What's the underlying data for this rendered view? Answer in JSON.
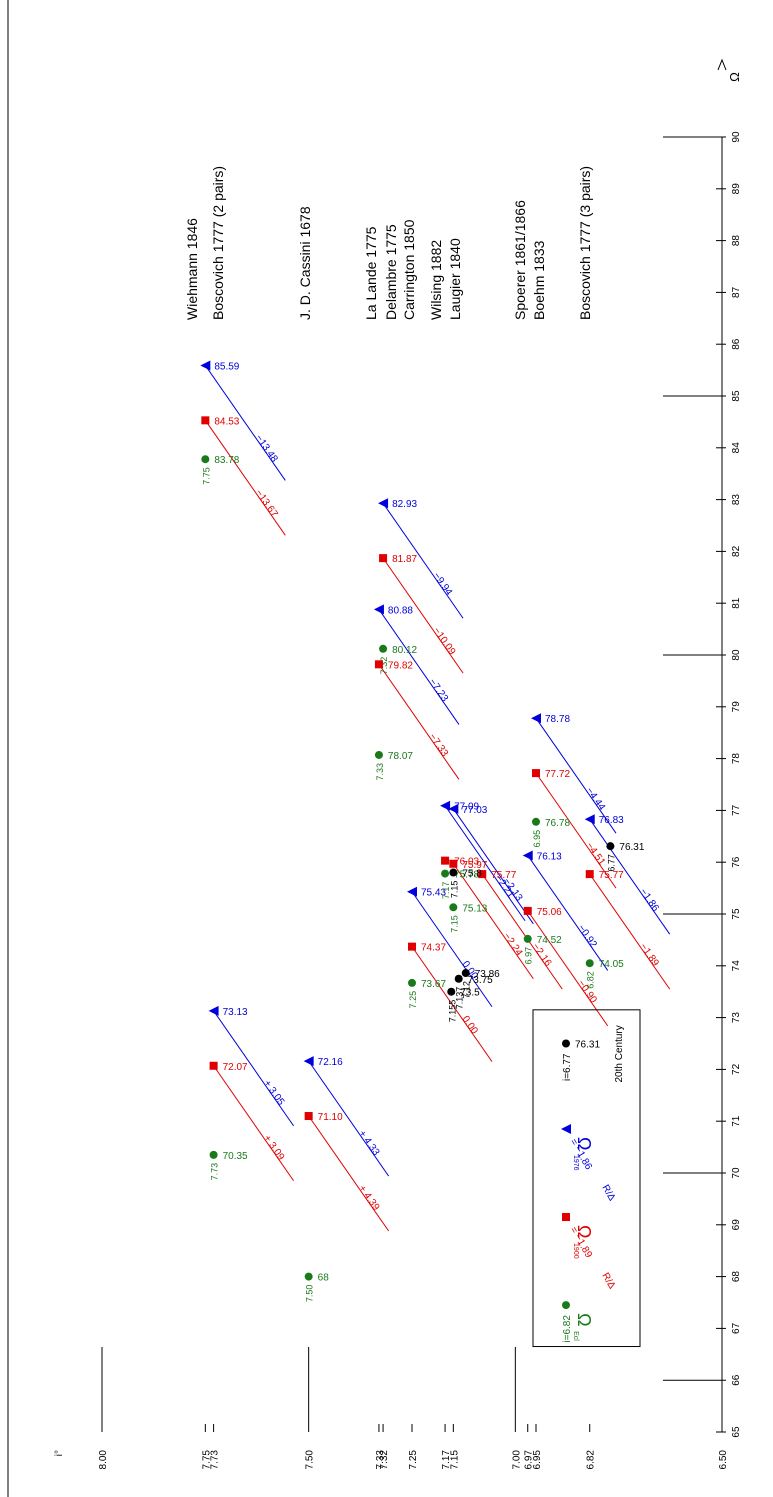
{
  "chart_data": {
    "type": "scatter",
    "x_axis": {
      "label": "Ω",
      "range": [
        65,
        90
      ],
      "tick_labels": [
        "65",
        "66",
        "67",
        "68",
        "69",
        "70",
        "71",
        "72",
        "73",
        "74",
        "75",
        "76",
        "77",
        "78",
        "79",
        "80",
        "81",
        "82",
        "83",
        "84",
        "85",
        "86",
        "87",
        "88",
        "89",
        "90"
      ],
      "long_ticks": [
        66,
        70,
        75,
        80,
        85,
        90
      ]
    },
    "y_axis": {
      "label": "i°",
      "range": [
        6.5,
        8.0
      ],
      "tick_labels": [
        "8.00",
        "7.75",
        "7.73",
        "7.50",
        "7.33",
        "7.32",
        "7.25",
        "7.17",
        "7.15",
        "7.00",
        "6.97",
        "6.95",
        "6.82",
        "6.50"
      ]
    },
    "groups": [
      {
        "names": [
          "Wiehmann 1846",
          "Boscovich 1777  (2 pairs)"
        ],
        "points": [
          {
            "series": "omega_ecl",
            "omega": "83.78",
            "x": 83.78,
            "y": 7.75,
            "incl": "7.75"
          },
          {
            "series": "omega_1900",
            "omega": "84.53",
            "x": 84.53,
            "y": 7.75,
            "delta": "−13.67"
          },
          {
            "series": "omega_1976",
            "omega": "85.59",
            "x": 85.59,
            "y": 7.75,
            "delta": "−13.48"
          },
          {
            "series": "omega_ecl",
            "omega": "70.35",
            "x": 70.35,
            "y": 7.73,
            "incl": "7.73"
          },
          {
            "series": "omega_1900",
            "omega": "72.07",
            "x": 72.07,
            "y": 7.73,
            "delta": "+ 3.09"
          },
          {
            "series": "omega_1976",
            "omega": "73.13",
            "x": 73.13,
            "y": 7.73,
            "delta": "+ 3.05"
          }
        ]
      },
      {
        "names": [
          "J. D. Cassini 1678"
        ],
        "points": [
          {
            "series": "omega_ecl",
            "omega": "68",
            "x": 68.0,
            "y": 7.5,
            "incl": "7.50"
          },
          {
            "series": "omega_1900",
            "omega": "71.10",
            "x": 71.1,
            "y": 7.5,
            "delta": "+ 4.39"
          },
          {
            "series": "omega_1976",
            "omega": "72.16",
            "x": 72.16,
            "y": 7.5,
            "delta": "+ 4.33"
          }
        ]
      },
      {
        "names": [
          "La Lande  1775",
          "Delambre  1775",
          "Carrington  1850"
        ],
        "points": [
          {
            "series": "omega_ecl",
            "omega": "80.12",
            "x": 80.12,
            "y": 7.32,
            "incl": "7.32"
          },
          {
            "series": "omega_1900",
            "omega": "79.82",
            "x": 79.82,
            "y": 7.33,
            "delta": "−7.33"
          },
          {
            "series": "omega_1976",
            "omega": "80.88",
            "x": 80.88,
            "y": 7.33,
            "delta": "−7.23"
          },
          {
            "series": "omega_1900",
            "omega": "81.87",
            "x": 81.87,
            "y": 7.32,
            "delta": "−10.09"
          },
          {
            "series": "omega_1976",
            "omega": "82.93",
            "x": 82.93,
            "y": 7.32,
            "delta": "−9.94"
          },
          {
            "series": "omega_ecl",
            "omega": "78.07",
            "x": 78.07,
            "y": 7.33,
            "incl": "7.33"
          },
          {
            "series": "omega_ecl",
            "omega": "73.67",
            "x": 73.67,
            "y": 7.25,
            "incl": "7.25"
          },
          {
            "series": "omega_1900",
            "omega": "74.37",
            "x": 74.37,
            "y": 7.25,
            "delta": "0.00"
          },
          {
            "series": "omega_1976",
            "omega": "75.43",
            "x": 75.43,
            "y": 7.25,
            "delta": "0.00"
          }
        ]
      },
      {
        "names": [
          "Wilsing  1882",
          "Laugier 1840"
        ],
        "points": [
          {
            "series": "omega_ecl",
            "omega": "75.78",
            "x": 75.78,
            "y": 7.17,
            "incl": "7.17"
          },
          {
            "series": "omega_1900",
            "omega": "76.03",
            "x": 76.03,
            "y": 7.17
          },
          {
            "series": "omega_1976",
            "omega": "77.09",
            "x": 77.09,
            "y": 7.17,
            "delta": "−2.21"
          },
          {
            "series": "omega_1900",
            "omega": "75.97",
            "x": 75.97,
            "y": 7.15,
            "delta": "−2.24"
          },
          {
            "series": "omega_1976",
            "omega": "77.03",
            "x": 77.03,
            "y": 7.15,
            "delta": "−2.13"
          },
          {
            "series": "omega_ecl",
            "omega": "75.13",
            "x": 75.13,
            "y": 7.15,
            "incl": "7.15"
          },
          {
            "series": "omega_1900",
            "omega": "75.77",
            "x": 75.77,
            "y": 7.08,
            "delta": "−2.16"
          },
          {
            "series": "twentieth",
            "omega": "75.8",
            "x": 75.8,
            "y": 7.15,
            "incl": "7.15"
          },
          {
            "series": "twentieth",
            "omega": "73.75",
            "x": 73.75,
            "y": 7.137,
            "incl": "7.137"
          },
          {
            "series": "twentieth",
            "omega": "73.86",
            "x": 73.86,
            "y": 7.12,
            "incl": "7.12"
          },
          {
            "series": "twentieth",
            "omega": "73.5",
            "x": 73.5,
            "y": 7.155,
            "incl": "7.155"
          }
        ]
      },
      {
        "names": [
          "Spoerer 1861/1866",
          "Boehm  1833"
        ],
        "points": [
          {
            "series": "omega_ecl",
            "omega": "74.52",
            "x": 74.52,
            "y": 6.97,
            "incl": "6.97"
          },
          {
            "series": "omega_1900",
            "omega": "75.06",
            "x": 75.06,
            "y": 6.97,
            "delta": "−0.90"
          },
          {
            "series": "omega_1976",
            "omega": "76.13",
            "x": 76.13,
            "y": 6.97,
            "delta": "−0.92"
          },
          {
            "series": "omega_ecl",
            "omega": "76.78",
            "x": 76.78,
            "y": 6.95,
            "incl": "6.95"
          },
          {
            "series": "omega_1900",
            "omega": "77.72",
            "x": 77.72,
            "y": 6.95,
            "delta": "−4.51"
          },
          {
            "series": "omega_1976",
            "omega": "78.78",
            "x": 78.78,
            "y": 6.95,
            "delta": "−4.44"
          }
        ]
      },
      {
        "names": [
          "Boscovich 1777  (3 pairs)"
        ],
        "points": [
          {
            "series": "omega_ecl",
            "omega": "74.05",
            "x": 74.05,
            "y": 6.82,
            "incl": "6.82"
          },
          {
            "series": "omega_1900",
            "omega": "75.77",
            "x": 75.77,
            "y": 6.82,
            "delta": "−1.89"
          },
          {
            "series": "omega_1976",
            "omega": "76.83",
            "x": 76.83,
            "y": 6.82,
            "delta": "−1.86"
          },
          {
            "series": "twentieth",
            "omega": "76.31",
            "x": 76.31,
            "y": 6.77,
            "incl": "6.77"
          }
        ]
      }
    ],
    "legend": {
      "title": "20th Century",
      "items": [
        {
          "series": "twentieth",
          "label": "76.31",
          "incl_label": "i=6.77"
        },
        {
          "series": "omega_1976",
          "symbol": "Ω",
          "subscript": "1976",
          "rel_label": "R/Δ",
          "delta": "= −1.86"
        },
        {
          "series": "omega_1900",
          "symbol": "Ω",
          "subscript": "1900",
          "rel_label": "R/Δ",
          "delta": "= −1.89"
        },
        {
          "series": "omega_ecl",
          "symbol": "Ω",
          "subscript": "Ecl",
          "incl_label": "i=6.82"
        }
      ]
    },
    "colors": {
      "omega_ecl": "#1a7a1a",
      "omega_1900": "#e00000",
      "omega_1976": "#0000dd",
      "twentieth": "#000000",
      "axis": "#000000"
    }
  }
}
